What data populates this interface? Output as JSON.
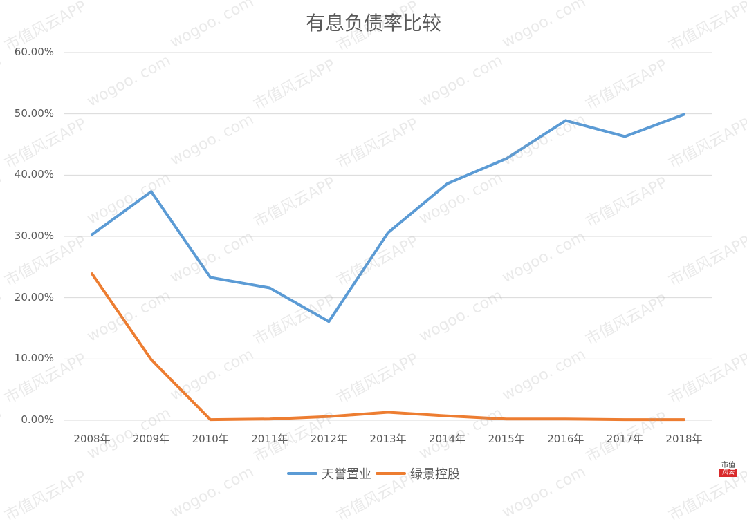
{
  "chart_data": {
    "type": "line",
    "title": "有息负债率比较",
    "xlabel": "",
    "ylabel": "",
    "categories": [
      "2008年",
      "2009年",
      "2010年",
      "2011年",
      "2012年",
      "2013年",
      "2014年",
      "2015年",
      "2016年",
      "2017年",
      "2018年"
    ],
    "series": [
      {
        "name": "天誉置业",
        "color": "#5b9bd5",
        "values": [
          30.3,
          37.3,
          23.3,
          21.6,
          16.1,
          30.6,
          38.6,
          42.7,
          48.9,
          46.3,
          49.9
        ]
      },
      {
        "name": "绿景控股",
        "color": "#ed7d31",
        "values": [
          23.9,
          9.9,
          0.1,
          0.2,
          0.6,
          1.3,
          0.7,
          0.2,
          0.2,
          0.1,
          0.1
        ]
      }
    ],
    "ylim": [
      0,
      60
    ],
    "yticks": [
      "0.00%",
      "10.00%",
      "20.00%",
      "30.00%",
      "40.00%",
      "50.00%",
      "60.00%"
    ],
    "grid": true,
    "legend_position": "bottom"
  },
  "watermark": {
    "text_a": "wogoo. com",
    "text_b": "市值风云APP"
  },
  "logo": {
    "top": "市值",
    "bottom": "风云"
  }
}
